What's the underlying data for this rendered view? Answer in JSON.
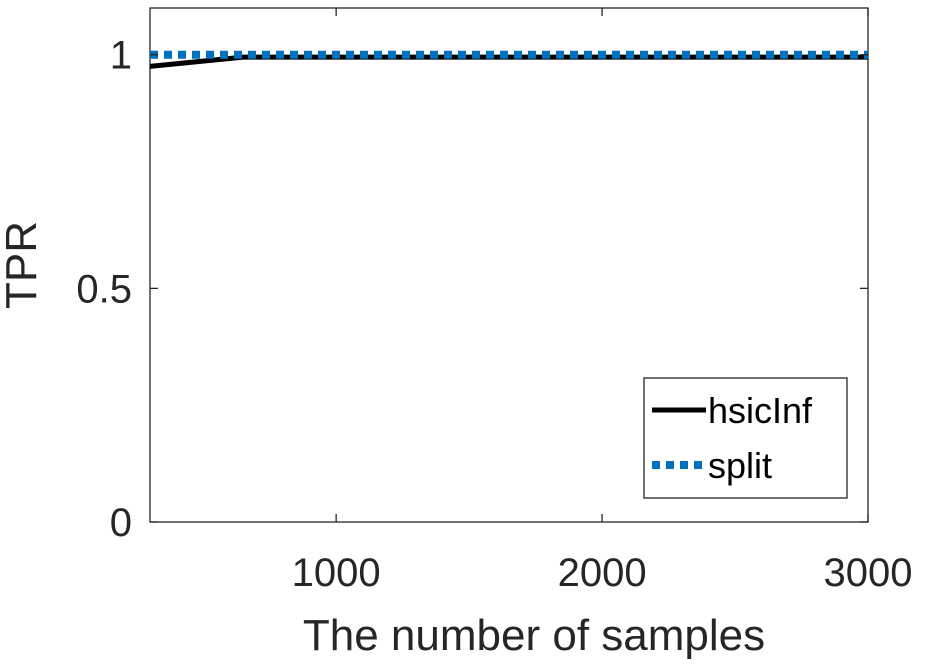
{
  "chart_data": {
    "type": "line",
    "title": "",
    "xlabel": "The number of samples",
    "ylabel": "TPR",
    "xlim": [
      300,
      3000
    ],
    "ylim": [
      0,
      1.1
    ],
    "x_ticks": [
      1000,
      2000,
      3000
    ],
    "y_ticks": [
      0,
      0.5,
      1
    ],
    "x_tick_labels": [
      "1000",
      "2000",
      "3000"
    ],
    "y_tick_labels": [
      "0",
      "0.5",
      "1"
    ],
    "grid": false,
    "legend_position": "bottom-right",
    "series": [
      {
        "name": "hsicInf",
        "color": "#000000",
        "style": "solid",
        "x": [
          300,
          650,
          1000,
          1500,
          2000,
          2500,
          3000
        ],
        "y": [
          0.975,
          0.995,
          0.995,
          0.995,
          0.995,
          0.995,
          0.995
        ]
      },
      {
        "name": "split",
        "color": "#0072BD",
        "style": "dotted",
        "x": [
          300,
          650,
          1000,
          1500,
          2000,
          2500,
          3000
        ],
        "y": [
          1.0,
          1.0,
          1.0,
          1.0,
          1.0,
          1.0,
          1.0
        ]
      }
    ]
  }
}
